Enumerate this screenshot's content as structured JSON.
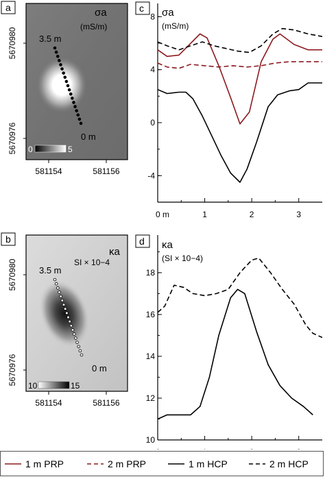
{
  "panel_letters": {
    "a": "a",
    "b": "b",
    "c": "c",
    "d": "d"
  },
  "maps": {
    "sigma_label": "σa",
    "sigma_unit": "(mS/m)",
    "kappa_label": "κa",
    "kappa_unit": "SI × 10−4",
    "start_label": "3.5 m",
    "end_label": "0 m",
    "y_ticks": [
      "5670980",
      "5670976"
    ],
    "x_ticks": [
      "581154",
      "581156"
    ],
    "sigma_colorbar": {
      "min": "0",
      "max": "5"
    },
    "kappa_colorbar": {
      "min": "10",
      "max": "15"
    }
  },
  "legend": [
    {
      "label": "1 m PRP",
      "color": "#8b1a1f",
      "dash": "solid"
    },
    {
      "label": "2 m PRP",
      "color": "#8b1a1f",
      "dash": "dashed"
    },
    {
      "label": "1 m HCP",
      "color": "#000000",
      "dash": "solid"
    },
    {
      "label": "2 m HCP",
      "color": "#000000",
      "dash": "dashed"
    }
  ],
  "chart_data": [
    {
      "type": "line",
      "panel": "c",
      "title": "σa",
      "ylabel": "(mS/m)",
      "xlim": [
        0,
        3.5
      ],
      "ylim": [
        -6,
        9
      ],
      "x_ticks": [
        0,
        1,
        2,
        3
      ],
      "x_tick_labels": [
        "0 m",
        "1",
        "2",
        "3"
      ],
      "y_ticks": [
        -4,
        0,
        4,
        8
      ],
      "y_tick_labels": [
        "-4",
        "0",
        "4",
        "8"
      ],
      "series": [
        {
          "name": "1 m PRP",
          "x": [
            0,
            0.2,
            0.45,
            0.9,
            1.05,
            1.3,
            1.55,
            1.75,
            1.95,
            2.2,
            2.45,
            2.6,
            2.9,
            3.2,
            3.5
          ],
          "y": [
            5.5,
            5.0,
            5.1,
            6.7,
            6.4,
            4.3,
            1.9,
            -0.1,
            0.8,
            4.6,
            6.3,
            6.7,
            5.9,
            5.5,
            5.5
          ]
        },
        {
          "name": "2 m PRP",
          "x": [
            0,
            0.2,
            0.45,
            0.7,
            1.0,
            1.3,
            1.6,
            1.9,
            2.2,
            2.5,
            2.8,
            3.1,
            3.5
          ],
          "y": [
            4.5,
            4.2,
            4.1,
            4.4,
            4.3,
            4.2,
            4.3,
            4.2,
            4.3,
            4.5,
            4.6,
            4.6,
            4.6
          ]
        },
        {
          "name": "1 m HCP",
          "x": [
            0,
            0.2,
            0.45,
            0.6,
            0.75,
            0.95,
            1.15,
            1.35,
            1.55,
            1.75,
            1.9,
            2.1,
            2.35,
            2.55,
            2.8,
            3.0,
            3.2,
            3.5
          ],
          "y": [
            2.5,
            2.2,
            2.3,
            2.3,
            1.8,
            0.5,
            -1.0,
            -2.5,
            -3.8,
            -4.5,
            -3.5,
            -1.5,
            1.2,
            2.1,
            2.4,
            2.5,
            3.0,
            3.0
          ]
        },
        {
          "name": "2 m HCP",
          "x": [
            0,
            0.2,
            0.45,
            0.7,
            0.95,
            1.2,
            1.45,
            1.7,
            1.95,
            2.2,
            2.45,
            2.65,
            2.9,
            3.2,
            3.5
          ],
          "y": [
            6.1,
            5.8,
            5.5,
            5.8,
            6.1,
            5.8,
            5.6,
            5.4,
            5.3,
            5.8,
            6.7,
            7.1,
            7.0,
            6.7,
            6.5
          ]
        }
      ]
    },
    {
      "type": "line",
      "panel": "d",
      "title": "κa",
      "ylabel": "(SI × 10−4)",
      "xlim": [
        0,
        3.5
      ],
      "ylim": [
        10,
        19.8
      ],
      "x_ticks": [
        0,
        1,
        2,
        3
      ],
      "x_tick_labels": [
        "0 m",
        "1",
        "2",
        "3"
      ],
      "y_ticks": [
        10,
        12,
        14,
        16,
        18
      ],
      "y_tick_labels": [
        "10",
        "12",
        "14",
        "16",
        "18"
      ],
      "series": [
        {
          "name": "1 m HCP",
          "x": [
            0,
            0.2,
            0.45,
            0.7,
            0.9,
            1.1,
            1.3,
            1.55,
            1.7,
            1.85,
            2.1,
            2.35,
            2.6,
            2.85,
            3.1,
            3.3
          ],
          "y": [
            11.0,
            11.2,
            11.2,
            11.2,
            11.6,
            13.0,
            15.0,
            16.8,
            17.2,
            17.0,
            15.2,
            13.6,
            12.6,
            12.0,
            11.6,
            11.2
          ]
        },
        {
          "name": "2 m HCP",
          "x": [
            0,
            0.15,
            0.35,
            0.55,
            0.75,
            1.0,
            1.25,
            1.5,
            1.75,
            2.0,
            2.15,
            2.4,
            2.65,
            2.9,
            3.15,
            3.3,
            3.5
          ],
          "y": [
            16.1,
            16.4,
            17.4,
            17.3,
            17.0,
            16.9,
            17.0,
            17.2,
            18.0,
            18.6,
            18.7,
            18.0,
            17.2,
            16.5,
            15.5,
            15.1,
            14.9
          ]
        }
      ]
    }
  ]
}
